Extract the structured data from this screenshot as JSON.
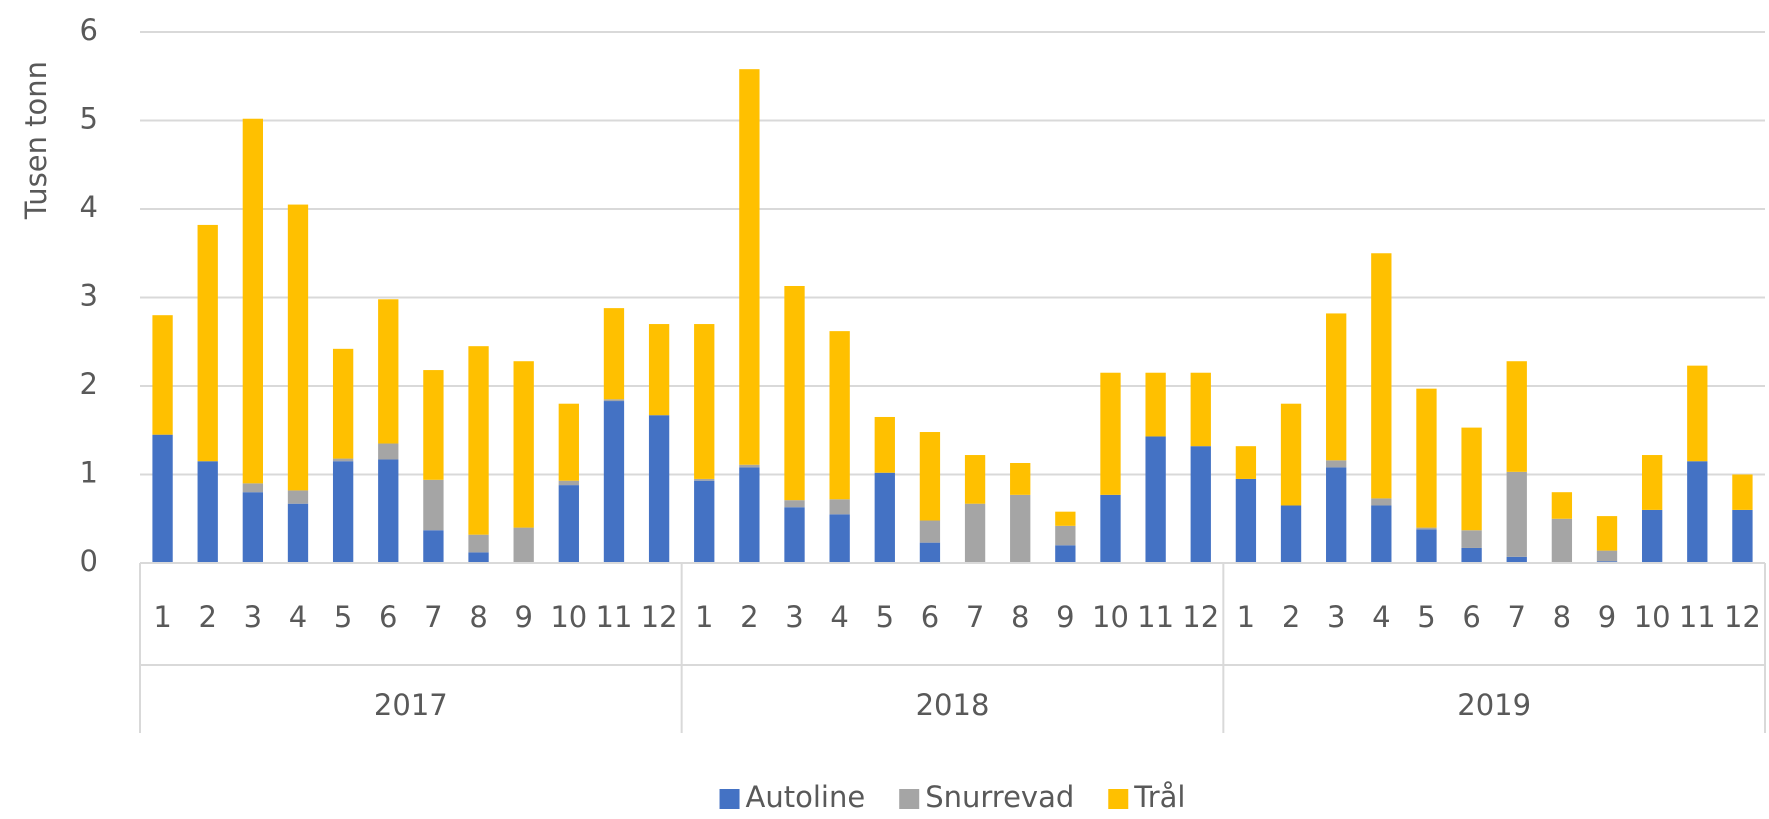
{
  "chart_data": {
    "type": "stacked_bar",
    "y_label": "Tusen tonn",
    "categories": [
      "1",
      "2",
      "3",
      "4",
      "5",
      "6",
      "7",
      "8",
      "9",
      "10",
      "11",
      "12",
      "1",
      "2",
      "3",
      "4",
      "5",
      "6",
      "7",
      "8",
      "9",
      "10",
      "11",
      "12",
      "1",
      "2",
      "3",
      "4",
      "5",
      "6",
      "7",
      "8",
      "9",
      "10",
      "11",
      "12"
    ],
    "x_groups": [
      "2017",
      "2018",
      "2019"
    ],
    "series": [
      {
        "name": "Autoline",
        "color": "#4472c4",
        "values": [
          1.45,
          1.15,
          0.8,
          0.67,
          1.15,
          1.17,
          0.37,
          0.12,
          0,
          0.88,
          1.83,
          1.67,
          0.93,
          1.08,
          0.63,
          0.55,
          1.02,
          0.23,
          0,
          0,
          0.2,
          0.77,
          1.43,
          1.32,
          0.95,
          0.65,
          1.08,
          0.65,
          0.38,
          0.17,
          0.07,
          0,
          0.02,
          0.6,
          1.15,
          0.6
        ]
      },
      {
        "name": "Snurrevad",
        "color": "#a5a5a5",
        "values": [
          0,
          0,
          0.1,
          0.15,
          0.03,
          0.18,
          0.57,
          0.2,
          0.4,
          0.05,
          0.02,
          0,
          0.02,
          0.03,
          0.08,
          0.17,
          0,
          0.25,
          0.67,
          0.77,
          0.22,
          0,
          0,
          0,
          0,
          0,
          0.08,
          0.08,
          0.02,
          0.2,
          0.96,
          0.5,
          0.12,
          0,
          0,
          0
        ]
      },
      {
        "name": "Trål",
        "color": "#ffc000",
        "values": [
          1.35,
          2.67,
          4.12,
          3.23,
          1.24,
          1.63,
          1.24,
          2.13,
          1.88,
          0.87,
          1.03,
          1.03,
          1.75,
          4.47,
          2.42,
          1.9,
          0.63,
          1.0,
          0.55,
          0.36,
          0.16,
          1.38,
          0.72,
          0.83,
          0.37,
          1.15,
          1.66,
          2.77,
          1.57,
          1.16,
          1.25,
          0.3,
          0.39,
          0.62,
          1.08,
          0.4
        ]
      }
    ],
    "ylim": [
      0,
      6
    ],
    "yticks": [
      0,
      1,
      2,
      3,
      4,
      5,
      6
    ],
    "grid": true,
    "legend": "bottom"
  }
}
